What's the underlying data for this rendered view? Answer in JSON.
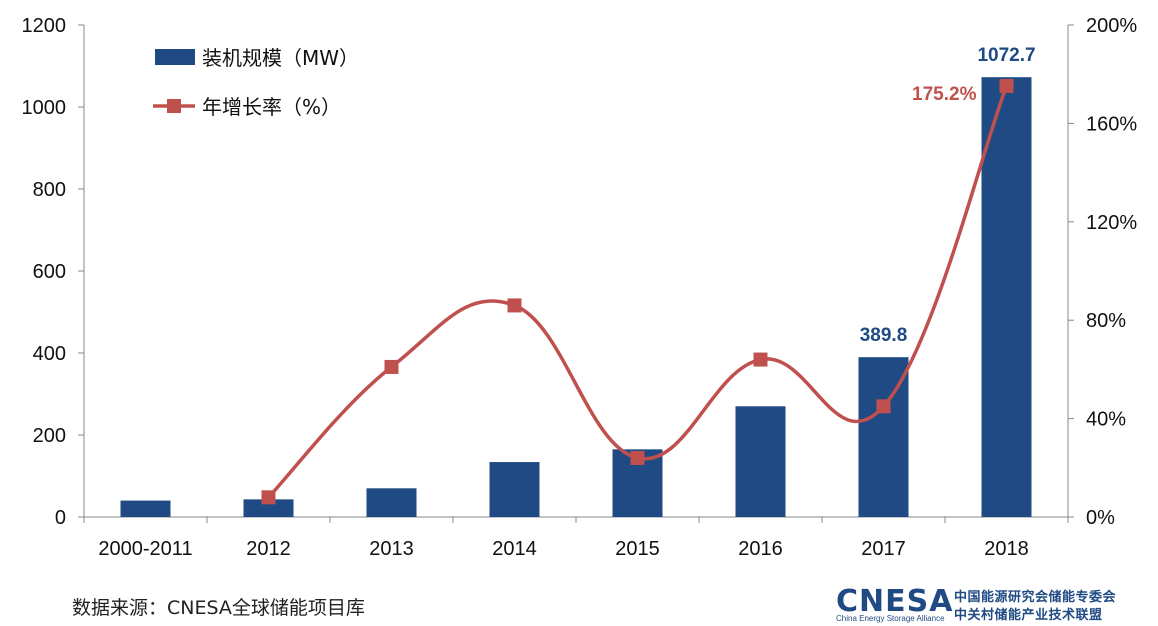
{
  "chart_data": {
    "type": "bar",
    "categories": [
      "2000-2011",
      "2012",
      "2013",
      "2014",
      "2015",
      "2016",
      "2017",
      "2018"
    ],
    "series": [
      {
        "name": "装机规模（MW）",
        "type": "bar",
        "axis": "left",
        "values": [
          40,
          43,
          70,
          134,
          165,
          270,
          389.8,
          1072.7
        ],
        "color": "#1f4a83"
      },
      {
        "name": "年增长率（%）",
        "type": "line",
        "axis": "right",
        "values": [
          null,
          8,
          61,
          86,
          24,
          64,
          45,
          175.2
        ],
        "color": "#c0504d"
      }
    ],
    "data_labels": [
      {
        "series": 0,
        "index": 6,
        "text": "389.8",
        "color": "#1f4a83"
      },
      {
        "series": 0,
        "index": 7,
        "text": "1072.7",
        "color": "#1f4a83"
      },
      {
        "series": 1,
        "index": 7,
        "text": "175.2%",
        "color": "#c0504d"
      }
    ],
    "y_left": {
      "ylim": [
        0,
        1200
      ],
      "ticks": [
        "0",
        "200",
        "400",
        "600",
        "800",
        "1000",
        "1200"
      ]
    },
    "y_right": {
      "ylim": [
        0,
        200
      ],
      "ticks": [
        "0%",
        "40%",
        "80%",
        "120%",
        "160%",
        "200%"
      ]
    },
    "legend": "top-left",
    "grid": false
  },
  "footer": {
    "source": "数据来源：CNESA全球储能项目库",
    "logo_main": "CNESA",
    "logo_en": "China Energy Storage Alliance",
    "logo_cn_1": "中国能源研究会储能专委会",
    "logo_cn_2": "中关村储能产业技术联盟"
  }
}
